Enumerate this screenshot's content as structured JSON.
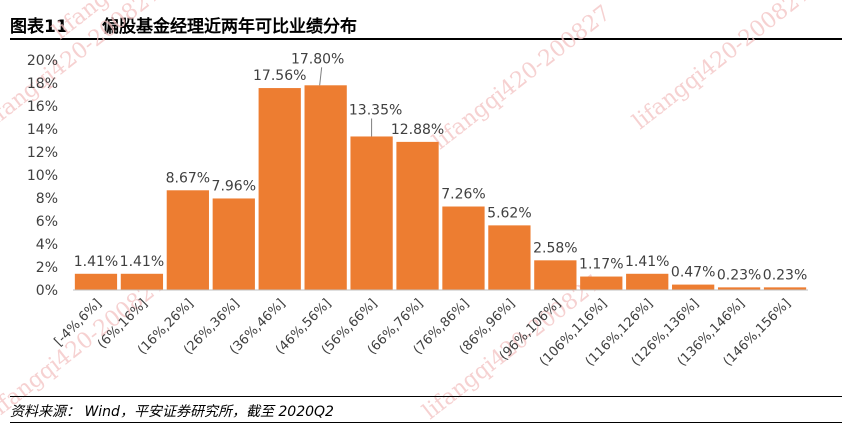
{
  "figure": {
    "number": "图表11",
    "title": "偏股基金经理近两年可比业绩分布"
  },
  "source": "资料来源： Wind，平安证券研究所，截至 2020Q2",
  "watermark": "lifangqi420-200827",
  "colors": {
    "bar": "#ED7D31",
    "axis_text": "#404040",
    "watermark": "#f3c2c2"
  },
  "chart_data": {
    "type": "bar",
    "title": "",
    "xlabel": "",
    "ylabel": "",
    "ylim": [
      0,
      20
    ],
    "y_ticks": [
      "0%",
      "2%",
      "4%",
      "6%",
      "8%",
      "10%",
      "12%",
      "14%",
      "16%",
      "18%",
      "20%"
    ],
    "grid": false,
    "categories": [
      "[-4%,6%]",
      "(6%,16%]",
      "(16%,26%]",
      "(26%,36%]",
      "(36%,46%]",
      "(46%,56%]",
      "(56%,66%]",
      "(66%,76%]",
      "(76%,86%]",
      "(86%,96%]",
      "(96%,106%]",
      "(106%,116%]",
      "(116%,126%]",
      "(126%,136%]",
      "(136%,146%]",
      "(146%,156%]"
    ],
    "values": [
      1.41,
      1.41,
      8.67,
      7.96,
      17.56,
      17.8,
      13.35,
      12.88,
      7.26,
      5.62,
      2.58,
      1.17,
      1.41,
      0.47,
      0.23,
      0.23
    ],
    "data_labels": [
      "1.41%",
      "1.41%",
      "8.67%",
      "7.96%",
      "17.56%",
      "17.80%",
      "13.35%",
      "12.88%",
      "7.26%",
      "5.62%",
      "2.58%",
      "1.17%",
      "1.41%",
      "0.47%",
      "0.23%",
      "0.23%"
    ]
  }
}
